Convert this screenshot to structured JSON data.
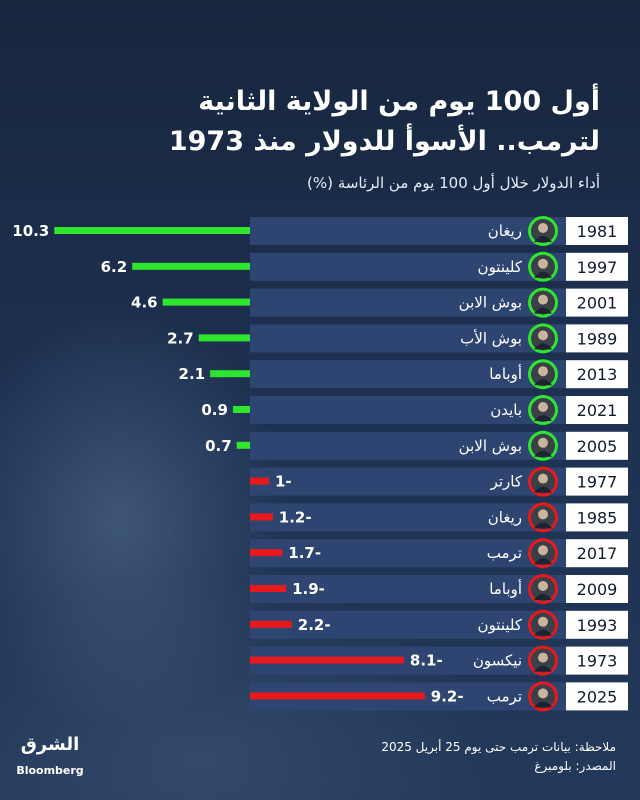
{
  "title_line1": "أول 100 يوم من الولاية الثانية",
  "title_line2": "لترمب.. الأسوأ للدولار منذ 1973",
  "subtitle": "أداء الدولار خلال أول 100 يوم من الرئاسة (%)",
  "colors": {
    "positive": "#2ee62e",
    "negative": "#e8191c",
    "row_band": "#2f4571",
    "year_box": "#ffffff"
  },
  "chart_data": {
    "type": "bar",
    "title": "أول 100 يوم من الولاية الثانية لترمب.. الأسوأ للدولار منذ 1973",
    "subtitle": "أداء الدولار خلال أول 100 يوم من الرئاسة (%)",
    "unit": "%",
    "rows": [
      {
        "year": "1981",
        "name": "ريغان",
        "value": 10.3,
        "label": "10.3"
      },
      {
        "year": "1997",
        "name": "كلينتون",
        "value": 6.2,
        "label": "6.2"
      },
      {
        "year": "2001",
        "name": "بوش الابن",
        "value": 4.6,
        "label": "4.6"
      },
      {
        "year": "1989",
        "name": "بوش الأب",
        "value": 2.7,
        "label": "2.7"
      },
      {
        "year": "2013",
        "name": "أوباما",
        "value": 2.1,
        "label": "2.1"
      },
      {
        "year": "2021",
        "name": "بايدن",
        "value": 0.9,
        "label": "0.9"
      },
      {
        "year": "2005",
        "name": "بوش الابن",
        "value": 0.7,
        "label": "0.7"
      },
      {
        "year": "1977",
        "name": "كارتر",
        "value": -1,
        "label": "1-"
      },
      {
        "year": "1985",
        "name": "ريغان",
        "value": -1.2,
        "label": "1.2-"
      },
      {
        "year": "2017",
        "name": "ترمب",
        "value": -1.7,
        "label": "1.7-"
      },
      {
        "year": "2009",
        "name": "أوباما",
        "value": -1.9,
        "label": "1.9-"
      },
      {
        "year": "1993",
        "name": "كلينتون",
        "value": -2.2,
        "label": "2.2-"
      },
      {
        "year": "1973",
        "name": "نيكسون",
        "value": -8.1,
        "label": "8.1-"
      },
      {
        "year": "2025",
        "name": "ترمب",
        "value": -9.2,
        "label": "9.2-"
      }
    ]
  },
  "logo": {
    "main": "الشرق",
    "sub": "Bloomberg"
  },
  "note_line1": "ملاحظة: بيانات ترمب حتى يوم 25 أبريل 2025",
  "note_line2": "المصدر: بلومبرغ"
}
